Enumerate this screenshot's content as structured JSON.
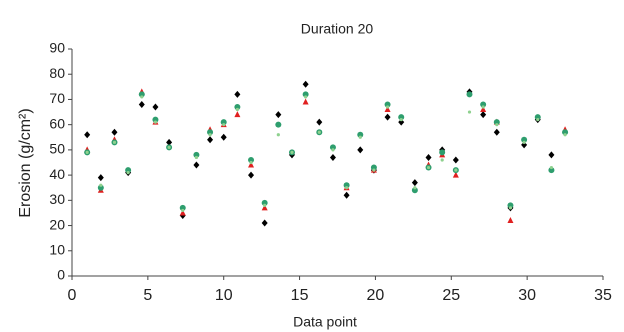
{
  "chart_data": {
    "type": "scatter",
    "title": "Duration 20",
    "x_label": "Data point",
    "y_label": "Erosion (g/cm²)",
    "x": [
      1,
      1.9,
      2.8,
      3.7,
      4.6,
      5.5,
      6.4,
      7.3,
      8.2,
      9.1,
      10,
      10.9,
      11.8,
      12.7,
      13.6,
      14.5,
      15.4,
      16.3,
      17.2,
      18.1,
      19,
      19.9,
      20.8,
      21.7,
      22.6,
      23.5,
      24.4,
      25.3,
      26.2,
      27.1,
      28,
      28.9,
      29.8,
      30.7,
      31.6,
      32.5
    ],
    "series": [
      {
        "color": "#000000",
        "marker": "diamond",
        "values": [
          56,
          39,
          57,
          41,
          68,
          67,
          53,
          24,
          44,
          54,
          55,
          72,
          40,
          21,
          64,
          48,
          76,
          61,
          47,
          32,
          50,
          42,
          63,
          61,
          37,
          47,
          50,
          46,
          73,
          64,
          57,
          27,
          52,
          62,
          48,
          57
        ]
      },
      {
        "color": "#e02020",
        "marker": "triangle",
        "values": [
          50,
          34,
          54,
          null,
          73,
          61,
          null,
          25,
          null,
          58,
          60,
          64,
          44,
          27,
          null,
          null,
          69,
          null,
          null,
          35,
          null,
          42,
          66,
          null,
          null,
          44,
          48,
          40,
          null,
          66,
          61,
          22,
          null,
          null,
          null,
          58
        ]
      },
      {
        "color": "#2e9e6e",
        "marker": "circle",
        "values": [
          49,
          35,
          53,
          42,
          72,
          62,
          51,
          27,
          48,
          57,
          61,
          67,
          46,
          29,
          60,
          49,
          72,
          57,
          51,
          36,
          56,
          43,
          68,
          63,
          34,
          43,
          49,
          42,
          72,
          68,
          61,
          28,
          54,
          63,
          42,
          57
        ]
      },
      {
        "color": "#8fd18f",
        "marker": "dot",
        "values": [
          49,
          36,
          53,
          41,
          71,
          61,
          51,
          26,
          47,
          56,
          60,
          66,
          45,
          28,
          56,
          49,
          71,
          57,
          50,
          35,
          55,
          42,
          67,
          62,
          35,
          43,
          46,
          42,
          65,
          67,
          60,
          27,
          53,
          62,
          43,
          56
        ]
      }
    ],
    "xlim": [
      0,
      35
    ],
    "xticks": [
      0,
      5,
      10,
      15,
      20,
      25,
      30,
      35
    ],
    "ylim": [
      0,
      90
    ],
    "yticks": [
      0,
      10,
      20,
      30,
      40,
      50,
      60,
      70,
      80,
      90
    ]
  }
}
